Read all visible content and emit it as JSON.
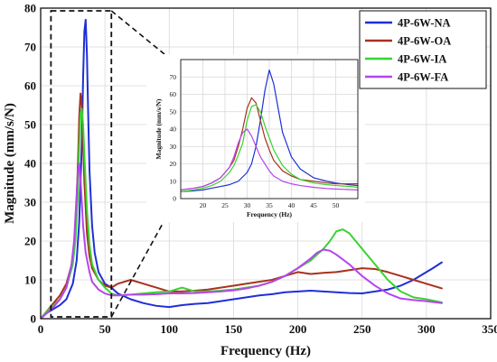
{
  "chart_data": [
    {
      "type": "line",
      "title": "",
      "xlabel": "Frequency (Hz)",
      "ylabel": "Magnitude (mm/s/N)",
      "xlim": [
        0,
        350
      ],
      "ylim": [
        0,
        80
      ],
      "x_ticks": [
        "0",
        "50",
        "100",
        "150",
        "200",
        "250",
        "300",
        "350"
      ],
      "y_ticks": [
        "0",
        "10",
        "20",
        "30",
        "40",
        "50",
        "60",
        "70",
        "80"
      ],
      "grid": true,
      "legend_position": "top-right",
      "series": [
        {
          "name": "4P-6W-NA",
          "color": "#1f2fd6",
          "x": [
            0,
            5,
            10,
            15,
            20,
            25,
            28,
            30,
            32,
            33,
            34,
            35,
            36,
            37,
            38,
            40,
            42,
            45,
            50,
            55,
            60,
            70,
            80,
            90,
            100,
            110,
            120,
            130,
            140,
            150,
            160,
            170,
            180,
            190,
            200,
            210,
            220,
            230,
            240,
            250,
            260,
            270,
            280,
            290,
            300,
            305,
            312
          ],
          "y": [
            0,
            1.5,
            2.5,
            3.5,
            5,
            9,
            15,
            25,
            45,
            62,
            74,
            77,
            68,
            52,
            38,
            24,
            17,
            12,
            9,
            8,
            6.5,
            5,
            4,
            3.3,
            3,
            3.5,
            3.8,
            4,
            4.5,
            5,
            5.5,
            6,
            6.3,
            6.8,
            7,
            7.2,
            7,
            6.8,
            6.6,
            6.5,
            7,
            7.5,
            8.5,
            10,
            12,
            13,
            14.5
          ]
        },
        {
          "name": "4P-6W-OA",
          "color": "#a8321c",
          "x": [
            0,
            5,
            10,
            15,
            20,
            25,
            27,
            29,
            30,
            31,
            32,
            33,
            34,
            36,
            38,
            40,
            45,
            50,
            55,
            60,
            70,
            80,
            90,
            100,
            110,
            120,
            130,
            140,
            150,
            160,
            170,
            180,
            190,
            200,
            210,
            220,
            230,
            240,
            250,
            260,
            270,
            280,
            290,
            300,
            312
          ],
          "y": [
            0,
            2,
            4,
            6,
            9,
            15,
            22,
            40,
            52,
            58,
            55,
            45,
            35,
            22,
            16,
            13,
            10,
            8.5,
            8,
            9,
            10,
            9,
            8,
            7,
            7,
            7.2,
            7.5,
            8,
            8.5,
            9,
            9.5,
            10,
            11,
            12,
            11.5,
            11.8,
            12,
            12.5,
            13,
            12.8,
            12,
            11,
            10,
            9,
            7.8
          ]
        },
        {
          "name": "4P-6W-IA",
          "color": "#38d230",
          "x": [
            0,
            5,
            10,
            15,
            20,
            25,
            27,
            29,
            30,
            31,
            32,
            33,
            34,
            36,
            38,
            40,
            45,
            50,
            55,
            60,
            70,
            80,
            90,
            100,
            105,
            110,
            115,
            120,
            130,
            140,
            150,
            160,
            170,
            180,
            190,
            200,
            210,
            220,
            225,
            230,
            235,
            240,
            250,
            260,
            270,
            280,
            290,
            300,
            312
          ],
          "y": [
            0,
            2,
            3.5,
            5,
            8,
            14,
            20,
            32,
            45,
            53,
            54,
            50,
            42,
            28,
            19,
            14,
            10,
            8,
            6.5,
            6,
            6.2,
            6.5,
            6.8,
            7,
            7.5,
            8,
            7.5,
            7,
            7,
            7.2,
            7.5,
            8,
            8.5,
            9.5,
            11,
            13,
            15,
            18,
            20,
            22.5,
            23,
            22,
            18,
            14,
            10,
            7,
            5.5,
            5,
            4.2
          ]
        },
        {
          "name": "4P-6W-FA",
          "color": "#b645ec",
          "x": [
            0,
            5,
            10,
            15,
            20,
            24,
            26,
            28,
            29,
            30,
            31,
            32,
            33,
            35,
            38,
            40,
            45,
            50,
            55,
            60,
            70,
            80,
            90,
            100,
            110,
            120,
            130,
            140,
            150,
            160,
            170,
            180,
            190,
            200,
            210,
            215,
            220,
            225,
            230,
            240,
            250,
            260,
            270,
            280,
            290,
            300,
            312
          ],
          "y": [
            0,
            1.5,
            3,
            5,
            8,
            14,
            20,
            32,
            38,
            40,
            36,
            30,
            24,
            17,
            12,
            9.5,
            7.5,
            6.5,
            6,
            6,
            6.2,
            6.2,
            6.3,
            6.5,
            6.5,
            6.6,
            6.8,
            7,
            7.3,
            7.8,
            8.5,
            9.5,
            11,
            13,
            15.5,
            17,
            17.8,
            17.5,
            16.5,
            14,
            11,
            8.5,
            6.5,
            5.2,
            4.8,
            4.5,
            4
          ]
        }
      ],
      "annotations": [
        "dashed zoom box 0–55 Hz",
        "inset zoom 15–55 Hz"
      ]
    },
    {
      "type": "line",
      "title": "",
      "xlabel": "Frequency (Hz)",
      "ylabel": "Magnitude (mm/s/N)",
      "xlim": [
        15,
        55
      ],
      "ylim": [
        0,
        80
      ],
      "x_ticks": [
        "20",
        "25",
        "30",
        "35",
        "40",
        "45",
        "50"
      ],
      "y_ticks": [
        "0",
        "10",
        "20",
        "30",
        "40",
        "50",
        "60",
        "70"
      ],
      "grid": true,
      "series": [
        {
          "color": "#1f2fd6",
          "x": [
            15,
            18,
            20,
            22,
            24,
            26,
            28,
            30,
            31,
            32,
            33,
            34,
            35,
            36,
            37,
            38,
            40,
            42,
            45,
            48,
            50,
            53,
            55
          ],
          "y": [
            4,
            4.5,
            5,
            6,
            7,
            8,
            10,
            15,
            20,
            30,
            45,
            62,
            74,
            66,
            52,
            38,
            24,
            17,
            12,
            10,
            9,
            8,
            7.5
          ]
        },
        {
          "color": "#a8321c",
          "x": [
            15,
            18,
            20,
            22,
            24,
            26,
            27,
            28,
            29,
            30,
            31,
            32,
            33,
            34,
            35,
            36,
            38,
            40,
            42,
            45,
            48,
            50,
            53,
            55
          ],
          "y": [
            5,
            6,
            7,
            9,
            12,
            18,
            22,
            30,
            40,
            52,
            58,
            55,
            45,
            35,
            28,
            22,
            16,
            13,
            11,
            10,
            9,
            8.5,
            8.5,
            8.5
          ]
        },
        {
          "color": "#38d230",
          "x": [
            15,
            18,
            20,
            22,
            24,
            26,
            27,
            28,
            29,
            30,
            31,
            32,
            33,
            34,
            35,
            36,
            38,
            40,
            42,
            45,
            48,
            50,
            53,
            55
          ],
          "y": [
            4,
            5,
            6,
            7.5,
            10,
            15,
            19,
            25,
            32,
            45,
            53,
            54,
            50,
            42,
            35,
            28,
            19,
            14,
            11,
            9,
            8,
            7.5,
            7,
            6.5
          ]
        },
        {
          "color": "#b645ec",
          "x": [
            15,
            18,
            20,
            22,
            24,
            26,
            27,
            28,
            29,
            30,
            31,
            32,
            33,
            34,
            35,
            36,
            38,
            40,
            42,
            45,
            48,
            50,
            53,
            55
          ],
          "y": [
            5,
            6,
            7,
            9,
            12,
            18,
            24,
            32,
            38,
            40,
            36,
            30,
            24,
            20,
            16,
            13,
            10,
            8.5,
            7.5,
            6.5,
            5.8,
            5.5,
            5.2,
            5
          ]
        }
      ]
    }
  ]
}
